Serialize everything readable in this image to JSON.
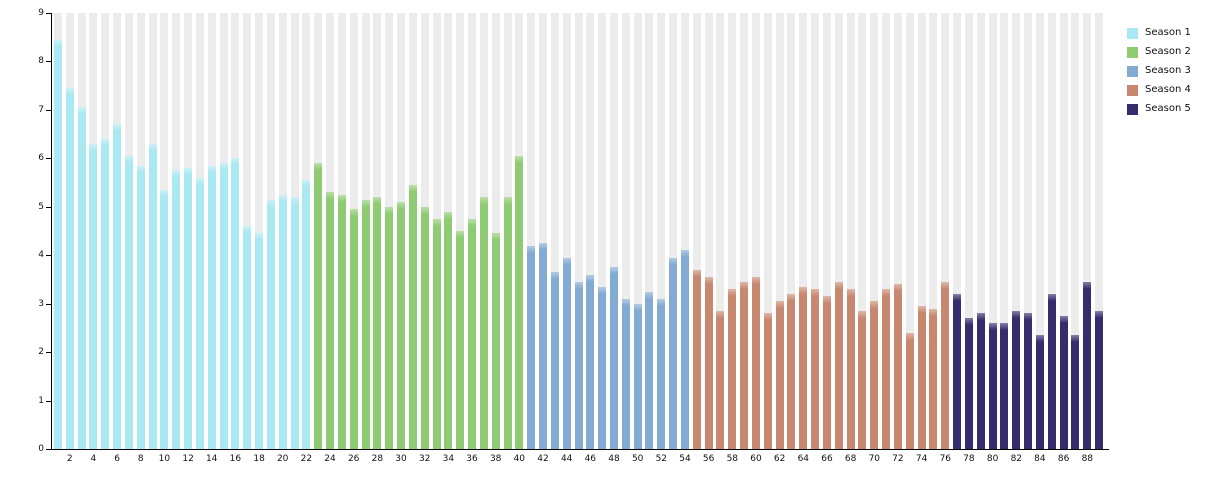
{
  "chart_data": {
    "type": "bar",
    "title": "",
    "xlabel": "",
    "ylabel": "",
    "x_range": [
      1,
      89
    ],
    "ylim": [
      0,
      9
    ],
    "grid": "background-column-stripes",
    "legend_position": "top-right",
    "series": [
      {
        "name": "Season 1",
        "color": "#aae8f2",
        "start_episode": 1,
        "values": [
          8.45,
          7.45,
          7.05,
          6.3,
          6.4,
          6.7,
          6.05,
          5.85,
          6.3,
          5.35,
          5.75,
          5.8,
          5.6,
          5.85,
          5.9,
          6.0,
          4.6,
          4.45,
          5.15,
          5.25,
          5.2,
          5.55
        ]
      },
      {
        "name": "Season 2",
        "color": "#8ecb72",
        "start_episode": 23,
        "values": [
          5.9,
          5.3,
          5.25,
          4.95,
          5.15,
          5.2,
          5.0,
          5.1,
          5.45,
          5.0,
          4.75,
          4.9,
          4.5,
          4.75,
          5.2,
          4.45,
          5.2,
          6.05
        ]
      },
      {
        "name": "Season 3",
        "color": "#82aad3",
        "start_episode": 41,
        "values": [
          4.2,
          4.25,
          3.65,
          3.95,
          3.45,
          3.6,
          3.35,
          3.75,
          3.1,
          3.0,
          3.25,
          3.1,
          3.95,
          4.1
        ]
      },
      {
        "name": "Season 4",
        "color": "#c8886f",
        "start_episode": 55,
        "values": [
          3.7,
          3.55,
          2.85,
          3.3,
          3.45,
          3.55,
          2.8,
          3.05,
          3.2,
          3.35,
          3.3,
          3.15,
          3.45,
          3.3,
          2.85,
          3.05,
          3.3,
          3.4,
          2.4,
          2.95,
          2.9,
          3.45
        ]
      },
      {
        "name": "Season 5",
        "color": "#342c6d",
        "start_episode": 77,
        "values": [
          3.2,
          2.7,
          2.8,
          2.6,
          2.6,
          2.85,
          2.8,
          2.35,
          3.2,
          2.75,
          2.35,
          3.45,
          2.85
        ]
      }
    ]
  },
  "axes": {
    "y_ticks": [
      "0",
      "1",
      "2",
      "3",
      "4",
      "5",
      "6",
      "7",
      "8",
      "9"
    ],
    "x_ticks": [
      "2",
      "4",
      "6",
      "8",
      "10",
      "12",
      "14",
      "16",
      "18",
      "20",
      "22",
      "24",
      "26",
      "28",
      "30",
      "32",
      "34",
      "36",
      "38",
      "40",
      "42",
      "44",
      "46",
      "48",
      "50",
      "52",
      "54",
      "56",
      "58",
      "60",
      "62",
      "64",
      "66",
      "68",
      "70",
      "72",
      "74",
      "76",
      "78",
      "80",
      "82",
      "84",
      "86",
      "88"
    ]
  },
  "legend": {
    "items": [
      {
        "label": "Season 1",
        "color": "#aae8f2"
      },
      {
        "label": "Season 2",
        "color": "#8ecb72"
      },
      {
        "label": "Season 3",
        "color": "#82aad3"
      },
      {
        "label": "Season 4",
        "color": "#c8886f"
      },
      {
        "label": "Season 5",
        "color": "#342c6d"
      }
    ]
  },
  "style": {
    "stripe_color": "#ececec",
    "axis_color": "#000000",
    "background": "#ffffff"
  }
}
